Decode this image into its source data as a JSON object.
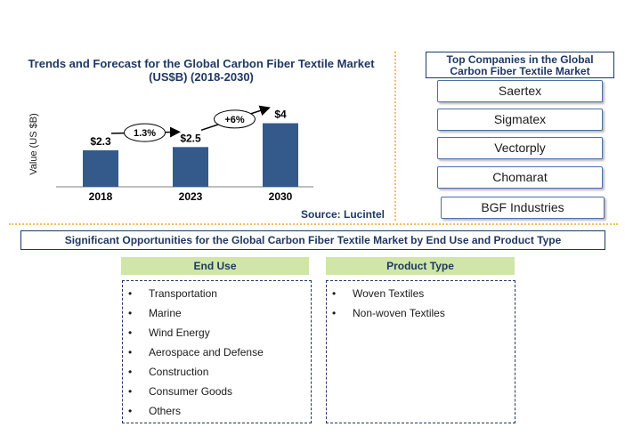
{
  "chart_data": {
    "type": "bar",
    "title": "Trends and Forecast for the Global Carbon Fiber Textile Market (US$B) (2018-2030)",
    "ylabel": "Value (US $B)",
    "categories": [
      "2018",
      "2023",
      "2030"
    ],
    "values": [
      2.3,
      2.5,
      4
    ],
    "data_labels": [
      "$2.3",
      "$2.5",
      "$4"
    ],
    "growth_labels": [
      "1.3%",
      "+6%"
    ],
    "ylim": [
      0,
      4.7
    ],
    "bar_color": "#345a8c",
    "grid": false,
    "source": "Source: Lucintel"
  },
  "companies": {
    "title": "Top Companies in the Global Carbon Fiber Textile Market",
    "items": [
      "Saertex",
      "Sigmatex",
      "Vectorply",
      "Chomarat",
      "BGF Industries"
    ]
  },
  "opportunities": {
    "banner": "Significant Opportunities for the Global Carbon Fiber Textile Market by End Use and Product Type",
    "end_use": {
      "header": "End Use",
      "items": [
        "Transportation",
        "Marine",
        "Wind Energy",
        "Aerospace and Defense",
        "Construction",
        "Consumer Goods",
        "Others"
      ]
    },
    "product_type": {
      "header": "Product Type",
      "items": [
        "Woven Textiles",
        "Non-woven Textiles"
      ]
    }
  },
  "bullet_char": "•",
  "colors": {
    "title_blue": "#1f3864",
    "header_green": "#cfe6a8",
    "divider_gold": "#f0c060"
  }
}
